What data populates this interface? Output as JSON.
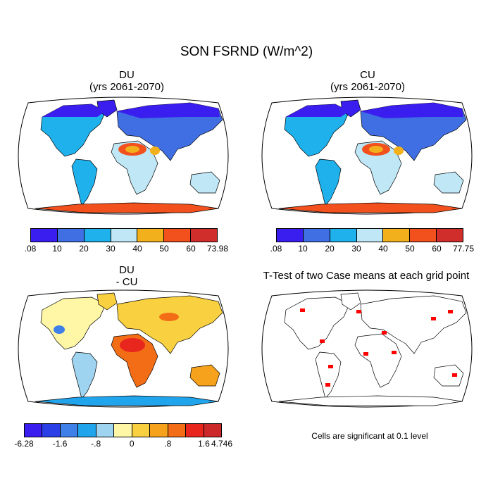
{
  "title": "SON FSRND (W/m^2)",
  "panels": [
    {
      "id": "du",
      "title": "DU",
      "subtitle": "(yrs 2061-2070)",
      "colorbar": {
        "colors": [
          "#3a1ef0",
          "#3f6fe2",
          "#1fb1ec",
          "#bfe7f5",
          "#f2b01c",
          "#f2501d",
          "#d02e2b"
        ],
        "labels": [
          ".08",
          "10",
          "20",
          "30",
          "40",
          "50",
          "60",
          "73.98"
        ]
      }
    },
    {
      "id": "cu",
      "title": "CU",
      "subtitle": "(yrs 2061-2070)",
      "colorbar": {
        "colors": [
          "#3a1ef0",
          "#3f6fe2",
          "#1fb1ec",
          "#bfe7f5",
          "#f2b01c",
          "#f2501d",
          "#d02e2b"
        ],
        "labels": [
          ".08",
          "10",
          "20",
          "30",
          "40",
          "50",
          "60",
          "77.75"
        ]
      }
    },
    {
      "id": "diff",
      "title": "DU",
      "subtitle": "- CU",
      "colorbar": {
        "colors": [
          "#3a1ef0",
          "#2a3fe6",
          "#3f7fe8",
          "#20a4ec",
          "#9fd4f0",
          "#fff7a6",
          "#f8d040",
          "#f7a21c",
          "#f36c16",
          "#e8261e",
          "#cc2a2a"
        ],
        "labels": [
          "-6.28",
          "-1.6",
          "-.8",
          "0",
          ".8",
          "1.6",
          "4.746"
        ]
      }
    },
    {
      "id": "ttest",
      "title": "T-Test of two Case means at each grid point",
      "note": "Cells are significant at 0.1 level",
      "significant_color": "#ff0000"
    }
  ]
}
